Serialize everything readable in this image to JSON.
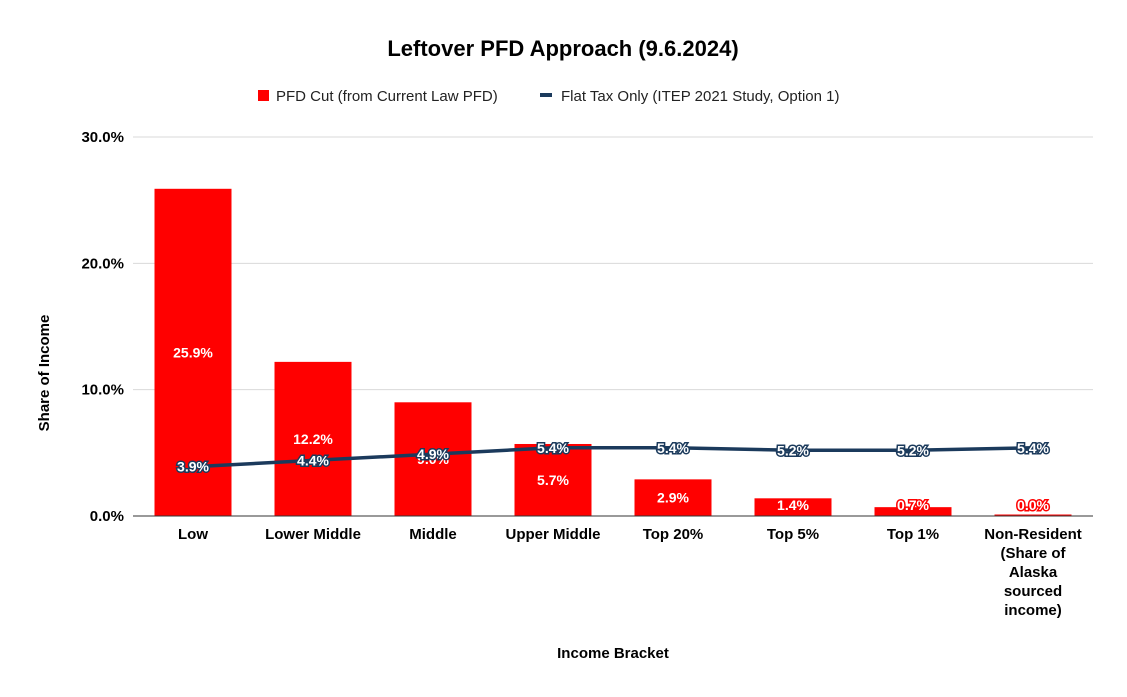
{
  "chart_data": {
    "type": "bar",
    "title": "Leftover PFD Approach (9.6.2024)",
    "xlabel": "Income Bracket",
    "ylabel": "Share of Income",
    "ylim": [
      0,
      30
    ],
    "yticks": [
      "0.0%",
      "10.0%",
      "20.0%",
      "30.0%"
    ],
    "grid": true,
    "legend_position": "top",
    "categories": [
      [
        "Low"
      ],
      [
        "Lower Middle"
      ],
      [
        "Middle"
      ],
      [
        "Upper Middle"
      ],
      [
        "Top 20%"
      ],
      [
        "Top 5%"
      ],
      [
        "Top 1%"
      ],
      [
        "Non-Resident",
        "(Share of",
        "Alaska",
        "sourced",
        "income)"
      ]
    ],
    "series": [
      {
        "name": "PFD Cut (from Current Law PFD)",
        "type": "bar",
        "color": "#ff0000",
        "values": [
          25.9,
          12.2,
          9.0,
          5.7,
          2.9,
          1.4,
          0.7,
          0.0
        ],
        "labels": [
          "25.9%",
          "12.2%",
          "9.0%",
          "5.7%",
          "2.9%",
          "1.4%",
          "0.7%",
          "0.0%"
        ]
      },
      {
        "name": "Flat Tax Only (ITEP 2021 Study, Option 1)",
        "type": "line",
        "color": "#1b3a5c",
        "values": [
          3.9,
          4.4,
          4.9,
          5.4,
          5.4,
          5.2,
          5.2,
          5.4
        ],
        "labels": [
          "3.9%",
          "4.4%",
          "4.9%",
          "5.4%",
          "5.4%",
          "5.2%",
          "5.2%",
          "5.4%"
        ]
      }
    ]
  }
}
